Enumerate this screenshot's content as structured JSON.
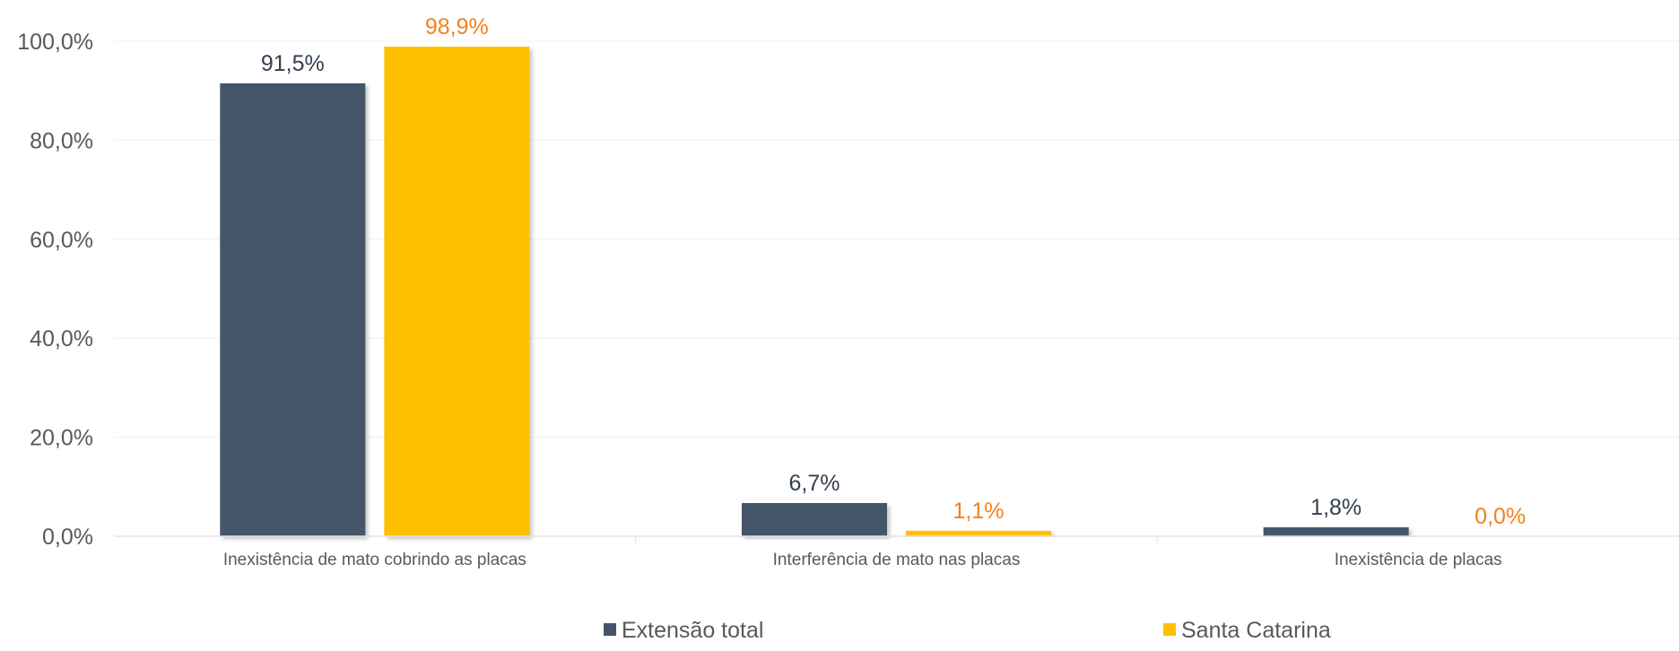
{
  "chart_data": {
    "type": "bar",
    "categories": [
      "Inexistência de mato cobrindo as placas",
      "Interferência de mato nas placas",
      "Inexistência de placas"
    ],
    "series": [
      {
        "name": "Extensão total",
        "color": "#44546a",
        "values": [
          91.5,
          6.7,
          1.8
        ],
        "labels": [
          "91,5%",
          "6,7%",
          "1,8%"
        ],
        "label_color": "#333f50"
      },
      {
        "name": "Santa Catarina",
        "color": "#ffc000",
        "values": [
          98.9,
          1.1,
          0.0
        ],
        "labels": [
          "98,9%",
          "1,1%",
          "0,0%"
        ],
        "label_color": "#f4801f"
      }
    ],
    "ylim": [
      0,
      100
    ],
    "yticks": [
      0,
      20,
      40,
      60,
      80,
      100
    ],
    "ytick_labels": [
      "0,0%",
      "20,0%",
      "40,0%",
      "60,0%",
      "80,0%",
      "100,0%"
    ],
    "grid": true,
    "legend_position": "bottom"
  }
}
